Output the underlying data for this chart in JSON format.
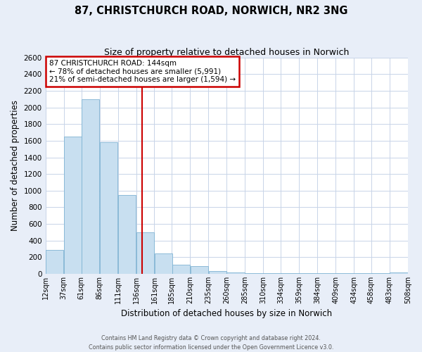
{
  "title": "87, CHRISTCHURCH ROAD, NORWICH, NR2 3NG",
  "subtitle": "Size of property relative to detached houses in Norwich",
  "xlabel": "Distribution of detached houses by size in Norwich",
  "ylabel": "Number of detached properties",
  "bar_left_edges": [
    12,
    37,
    61,
    86,
    111,
    136,
    161,
    185,
    210,
    235,
    260,
    285,
    310,
    334,
    359,
    384,
    409,
    434,
    458,
    483
  ],
  "bar_heights": [
    290,
    1650,
    2100,
    1580,
    950,
    500,
    245,
    110,
    95,
    35,
    20,
    10,
    10,
    5,
    5,
    5,
    5,
    5,
    5,
    20
  ],
  "bin_size": 25,
  "tick_labels": [
    "12sqm",
    "37sqm",
    "61sqm",
    "86sqm",
    "111sqm",
    "136sqm",
    "161sqm",
    "185sqm",
    "210sqm",
    "235sqm",
    "260sqm",
    "285sqm",
    "310sqm",
    "334sqm",
    "359sqm",
    "384sqm",
    "409sqm",
    "434sqm",
    "458sqm",
    "483sqm",
    "508sqm"
  ],
  "bar_color": "#c8dff0",
  "bar_edge_color": "#7fb3d3",
  "vline_x": 144,
  "vline_color": "#cc0000",
  "annotation_box_color": "#cc0000",
  "annotation_text_line1": "87 CHRISTCHURCH ROAD: 144sqm",
  "annotation_text_line2": "← 78% of detached houses are smaller (5,991)",
  "annotation_text_line3": "21% of semi-detached houses are larger (1,594) →",
  "ylim": [
    0,
    2600
  ],
  "yticks": [
    0,
    200,
    400,
    600,
    800,
    1000,
    1200,
    1400,
    1600,
    1800,
    2000,
    2200,
    2400,
    2600
  ],
  "footer_line1": "Contains HM Land Registry data © Crown copyright and database right 2024.",
  "footer_line2": "Contains public sector information licensed under the Open Government Licence v3.0.",
  "bg_color": "#e8eef8",
  "plot_bg_color": "#ffffff",
  "grid_color": "#c8d4e8",
  "title_fontsize": 10.5,
  "subtitle_fontsize": 9,
  "ylabel_text": "Number of detached properties",
  "tick_fontsize": 7,
  "ytick_fontsize": 7.5,
  "footer_fontsize": 5.8
}
